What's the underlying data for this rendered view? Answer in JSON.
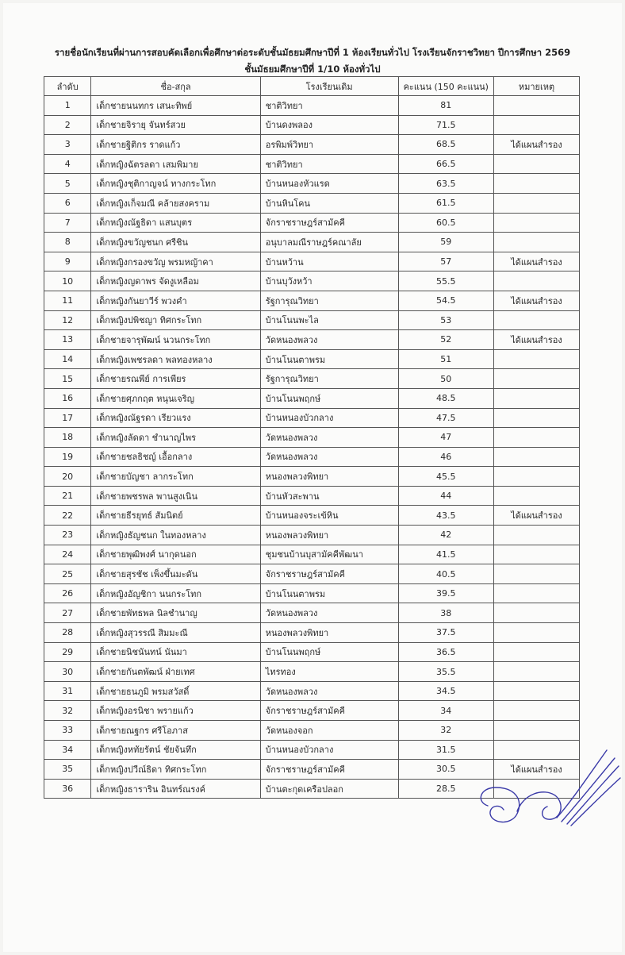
{
  "title_line1": "รายชื่อนักเรียนที่ผ่านการสอบคัดเลือกเพื่อศึกษาต่อระดับชั้นมัธยมศึกษาปีที่ 1 ห้องเรียนทั่วไป โรงเรียนจักราชวิทยา ปีการศึกษา 2569",
  "title_line2": "ชั้นมัธยมศึกษาปีที่ 1/10 ห้องทั่วไป",
  "headers": [
    "ลำดับ",
    "ชื่อ-สกุล",
    "โรงเรียนเดิม",
    "คะแนน (150 คะแนน)",
    "หมายเหตุ"
  ],
  "rows": [
    {
      "no": "1",
      "name": "เด็กชายนนทกร เสนะทิพย์",
      "school": "ชาติวิทยา",
      "score": "81",
      "note": ""
    },
    {
      "no": "2",
      "name": "เด็กชายจิรายุ จันทร์สวย",
      "school": "บ้านดงพลอง",
      "score": "71.5",
      "note": ""
    },
    {
      "no": "3",
      "name": "เด็กชายฐิติกร ราดแก้ว",
      "school": "อรพิมพ์วิทยา",
      "score": "68.5",
      "note": "ได้แผนสำรอง"
    },
    {
      "no": "4",
      "name": "เด็กหญิงฉัตรลดา เสมพิมาย",
      "school": "ชาติวิทยา",
      "score": "66.5",
      "note": ""
    },
    {
      "no": "5",
      "name": "เด็กหญิงชุติกาญจน์ ทางกระโทก",
      "school": "บ้านหนองหัวแรด",
      "score": "63.5",
      "note": ""
    },
    {
      "no": "6",
      "name": "เด็กหญิงเก็จมณี คล้ายสงคราม",
      "school": "บ้านหินโคน",
      "score": "61.5",
      "note": ""
    },
    {
      "no": "7",
      "name": "เด็กหญิงณัฐธิดา แสนบุตร",
      "school": "จักราชราษฎร์สามัคคี",
      "score": "60.5",
      "note": ""
    },
    {
      "no": "8",
      "name": "เด็กหญิงขวัญชนก ศรีชิน",
      "school": "อนุบาลมณีราษฎร์คณาลัย",
      "score": "59",
      "note": ""
    },
    {
      "no": "9",
      "name": "เด็กหญิงกรองขวัญ พรมหญ้าคา",
      "school": "บ้านหว้าน",
      "score": "57",
      "note": "ได้แผนสำรอง"
    },
    {
      "no": "10",
      "name": "เด็กหญิงญดาพร จัดงูเหลือม",
      "school": "บ้านบุวังหว้า",
      "score": "55.5",
      "note": ""
    },
    {
      "no": "11",
      "name": "เด็กหญิงกันยาวีร์ พวงคำ",
      "school": "รัฐการุณวิทยา",
      "score": "54.5",
      "note": "ได้แผนสำรอง"
    },
    {
      "no": "12",
      "name": "เด็กหญิงปพิชญา ทิศกระโทก",
      "school": "บ้านโนนพะไล",
      "score": "53",
      "note": ""
    },
    {
      "no": "13",
      "name": "เด็กชายจารุพัฒน์ นวนกระโทก",
      "school": "วัดหนองพลวง",
      "score": "52",
      "note": "ได้แผนสำรอง"
    },
    {
      "no": "14",
      "name": "เด็กหญิงเพชรลดา พลทองหลาง",
      "school": "บ้านโนนตาพรม",
      "score": "51",
      "note": ""
    },
    {
      "no": "15",
      "name": "เด็กชายรณพีย์ การเพียร",
      "school": "รัฐการุณวิทยา",
      "score": "50",
      "note": ""
    },
    {
      "no": "16",
      "name": "เด็กชายศุภกฤต หนุนเจริญ",
      "school": "บ้านโนนพฤกษ์",
      "score": "48.5",
      "note": ""
    },
    {
      "no": "17",
      "name": "เด็กหญิงณัฐรดา เรียวแรง",
      "school": "บ้านหนองบัวกลาง",
      "score": "47.5",
      "note": ""
    },
    {
      "no": "18",
      "name": "เด็กหญิงลัดดา ชำนาญไพร",
      "school": "วัดหนองพลวง",
      "score": "47",
      "note": ""
    },
    {
      "no": "19",
      "name": "เด็กชายชลธิชญ์ เอื้อกลาง",
      "school": "วัดหนองพลวง",
      "score": "46",
      "note": ""
    },
    {
      "no": "20",
      "name": "เด็กชายบัญชา ลากระโทก",
      "school": "หนองพลวงพิทยา",
      "score": "45.5",
      "note": ""
    },
    {
      "no": "21",
      "name": "เด็กชายพชรพล พานสูงเนิน",
      "school": "บ้านหัวสะพาน",
      "score": "44",
      "note": ""
    },
    {
      "no": "22",
      "name": "เด็กชายธีรยุทธ์ สัมนิตย์",
      "school": "บ้านหนองจระเข้หิน",
      "score": "43.5",
      "note": "ได้แผนสำรอง"
    },
    {
      "no": "23",
      "name": "เด็กหญิงธัญชนก ในทองหลาง",
      "school": "หนองพลวงพิทยา",
      "score": "42",
      "note": ""
    },
    {
      "no": "24",
      "name": "เด็กชายพุฒิพงศ์ นากุดนอก",
      "school": "ชุมชนบ้านบุสามัคคีพัฒนา",
      "score": "41.5",
      "note": ""
    },
    {
      "no": "25",
      "name": "เด็กชายสุรชัช เพ็งขึ้นมะดัน",
      "school": "จักราชราษฎร์สามัคคี",
      "score": "40.5",
      "note": ""
    },
    {
      "no": "26",
      "name": "เด็กหญิงอัญชิกา นนกระโทก",
      "school": "บ้านโนนตาพรม",
      "score": "39.5",
      "note": ""
    },
    {
      "no": "27",
      "name": "เด็กชายพัทธพล นิลชำนาญ",
      "school": "วัดหนองพลวง",
      "score": "38",
      "note": ""
    },
    {
      "no": "28",
      "name": "เด็กหญิงสุวรรณี สิมมะณี",
      "school": "หนองพลวงพิทยา",
      "score": "37.5",
      "note": ""
    },
    {
      "no": "29",
      "name": "เด็กชายนิชนันทน์ นันมา",
      "school": "บ้านโนนพฤกษ์",
      "score": "36.5",
      "note": ""
    },
    {
      "no": "30",
      "name": "เด็กชายกันตพัฒน์ ฝ่ายเทศ",
      "school": "ไทรทอง",
      "score": "35.5",
      "note": ""
    },
    {
      "no": "31",
      "name": "เด็กชายธนภูมิ พรมสวัสดิ์",
      "school": "วัดหนองพลวง",
      "score": "34.5",
      "note": ""
    },
    {
      "no": "32",
      "name": "เด็กหญิงอรนิชา พรายแก้ว",
      "school": "จักราชราษฎร์สามัคคี",
      "score": "34",
      "note": ""
    },
    {
      "no": "33",
      "name": "เด็กชายณฐกร ศรีโอภาส",
      "school": "วัดหนองจอก",
      "score": "32",
      "note": ""
    },
    {
      "no": "34",
      "name": "เด็กหญิงหทัยรัตน์ ชัยจันทึก",
      "school": "บ้านหนองบัวกลาง",
      "score": "31.5",
      "note": ""
    },
    {
      "no": "35",
      "name": "เด็กหญิงปวีณ์ธิดา ทิศกระโทก",
      "school": "จักราชราษฎร์สามัคคี",
      "score": "30.5",
      "note": "ได้แผนสำรอง"
    },
    {
      "no": "36",
      "name": "เด็กหญิงธาราริน อินทร์ณรงค์",
      "school": "บ้านตะกุดเครือปลอก",
      "score": "28.5",
      "note": ""
    }
  ],
  "signature_color": "#3a3aa8"
}
